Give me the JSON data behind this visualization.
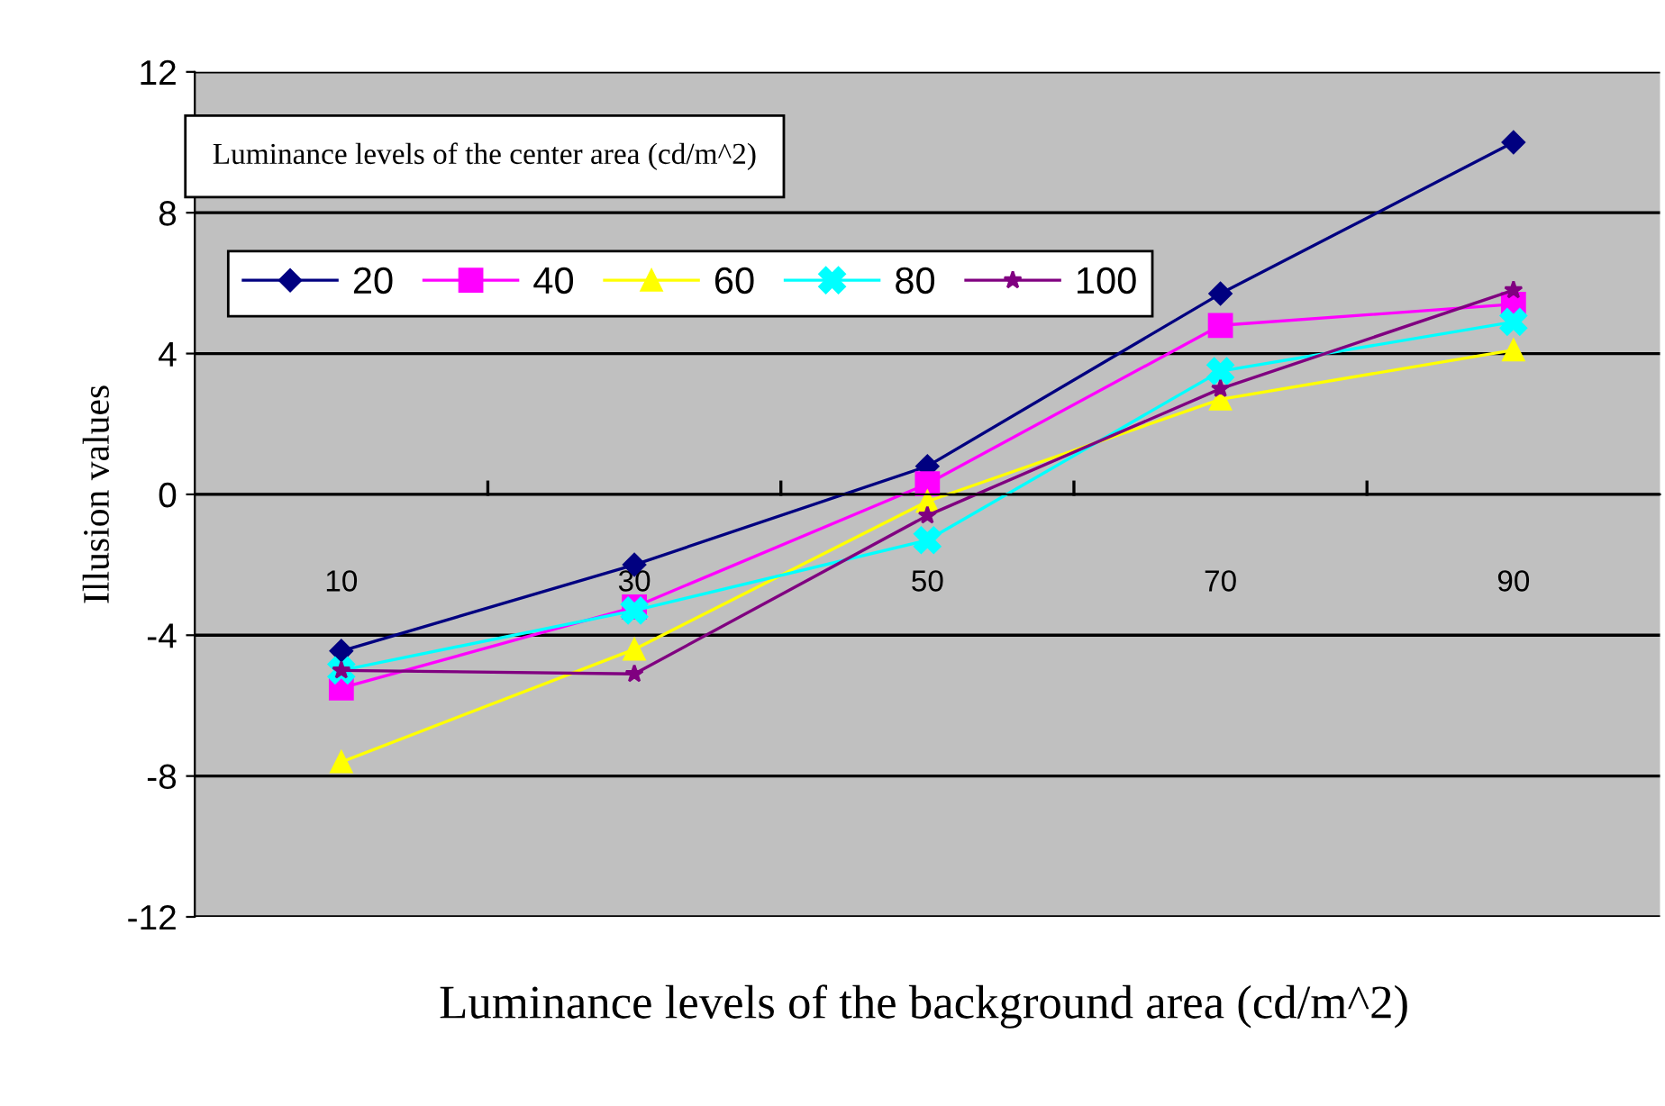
{
  "chart_data": {
    "type": "line",
    "xlabel": "Luminance levels of the background area (cd/m^2)",
    "ylabel": "Illusion values",
    "legend_title": "Luminance levels of the center area (cd/m^2)",
    "categories": [
      "10",
      "30",
      "50",
      "70",
      "90"
    ],
    "series": [
      {
        "name": "20",
        "color": "#000080",
        "marker": "diamond",
        "values": [
          -4.45,
          -2.0,
          0.8,
          5.7,
          10.0
        ]
      },
      {
        "name": "40",
        "color": "#ff00ff",
        "marker": "square",
        "values": [
          -5.5,
          -3.2,
          0.3,
          4.8,
          5.4
        ]
      },
      {
        "name": "60",
        "color": "#ffff00",
        "marker": "triangle",
        "values": [
          -7.6,
          -4.4,
          -0.2,
          2.7,
          4.1
        ]
      },
      {
        "name": "80",
        "color": "#00ffff",
        "marker": "cross",
        "values": [
          -5.0,
          -3.3,
          -1.3,
          3.5,
          4.9
        ]
      },
      {
        "name": "100",
        "color": "#800080",
        "marker": "star",
        "values": [
          -5.0,
          -5.1,
          -0.6,
          3.0,
          5.8
        ]
      }
    ],
    "ylim": [
      -12,
      12
    ],
    "yticks": [
      -12,
      -8,
      -4,
      0,
      4,
      8,
      12
    ],
    "grid": "y",
    "legend": "top left",
    "line_style": "solid"
  }
}
